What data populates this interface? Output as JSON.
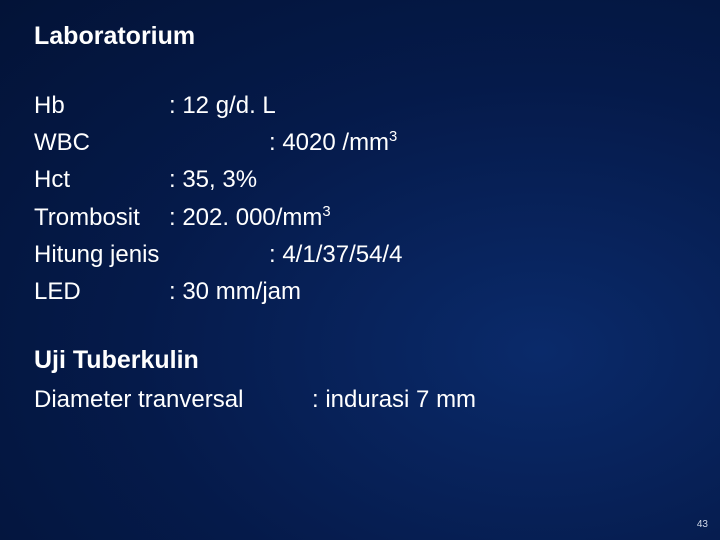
{
  "heading1": "Laboratorium",
  "rows": {
    "hb": {
      "label": "Hb",
      "value_pre": ": 12 g/d. L",
      "sup": "",
      "value_post": ""
    },
    "wbc": {
      "label": "WBC",
      "value_pre": ": 4020 /mm",
      "sup": "3",
      "value_post": ""
    },
    "hct": {
      "label": "Hct",
      "value_pre": ": 35, 3%",
      "sup": "",
      "value_post": ""
    },
    "trombosit": {
      "label": "Trombosit",
      "value_pre": ": 202. 000/mm",
      "sup": "3",
      "value_post": ""
    },
    "hitung": {
      "label": "Hitung jenis",
      "value_pre": ": 4/1/37/54/4",
      "sup": "",
      "value_post": ""
    },
    "led": {
      "label": "LED",
      "value_pre": ": 30 mm/jam",
      "sup": "",
      "value_post": ""
    }
  },
  "heading2": "Uji Tuberkulin",
  "diameter": {
    "label": "Diameter tranversal",
    "value": ": indurasi 7 mm"
  },
  "pagenum": "43",
  "colors": {
    "text": "#ffffff",
    "bg_center": "#0a2a6a",
    "bg_mid": "#051a4a",
    "bg_edge": "#02102f"
  },
  "fontsizes": {
    "heading": 25,
    "body": 24,
    "pagenum": 10
  }
}
